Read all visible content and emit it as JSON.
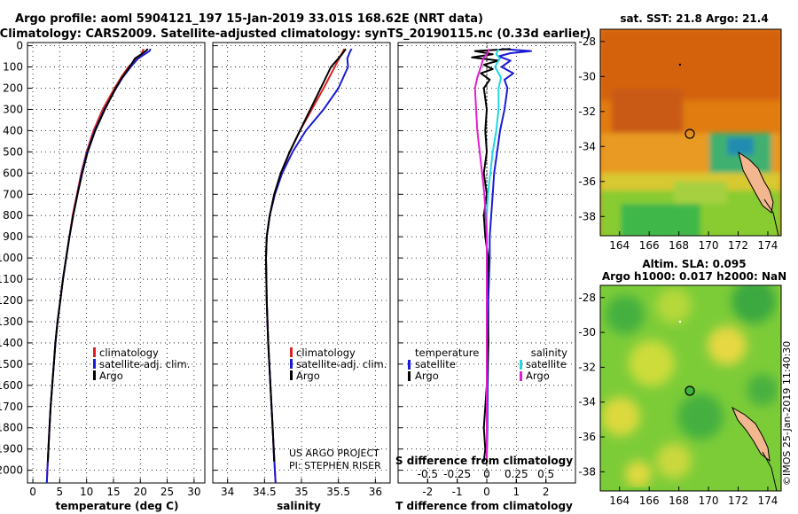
{
  "title": {
    "line1": "Argo profile: aoml 5904121_197 15-Jan-2019 33.01S 168.62E (NRT data)",
    "line2": "Climatology: CARS2009. Satellite-adjusted climatology: synTS_20190115.nc (0.33d earlier)"
  },
  "colors": {
    "climatology": "#e02020",
    "satellite": "#1a1ad6",
    "argo": "#000000",
    "s_satellite": "#20d8e0",
    "s_argo": "#e020d0"
  },
  "depth_ticks": [
    "0",
    "100",
    "200",
    "300",
    "400",
    "500",
    "600",
    "700",
    "800",
    "900",
    "1000",
    "1100",
    "1200",
    "1300",
    "1400",
    "1500",
    "1600",
    "1700",
    "1800",
    "1900",
    "2000"
  ],
  "legend_temp": {
    "climatology": "climatology",
    "satellite": "satellite-adj. clim.",
    "argo": "Argo"
  },
  "legend_diff": {
    "temp_title": "temperature",
    "sal_title": "salinity",
    "satellite": "satellite",
    "argo": "Argo"
  },
  "credit": {
    "line1": "US ARGO PROJECT",
    "line2": "PI: STEPHEN RISER"
  },
  "maps": {
    "sst_title": "sat. SST: 21.8 Argo: 21.4",
    "sla_title1": "Altim. SLA: 0.095",
    "sla_title2": "Argo h1000: 0.017 h2000: NaN",
    "lat_labels": [
      "-28",
      "-30",
      "-32",
      "-34",
      "-36",
      "-38"
    ],
    "lon_labels": [
      "164",
      "166",
      "168",
      "170",
      "172",
      "174"
    ]
  },
  "watermark": "©IMOS 25-Jan-2019 11:40:30",
  "chart_data": [
    {
      "type": "line",
      "xlabel": "temperature (deg C)",
      "ylabel": "depth",
      "xlim": [
        -1,
        32
      ],
      "ylim": [
        2060,
        -15
      ],
      "x_ticks": [
        "0",
        "5",
        "10",
        "15",
        "20",
        "25",
        "30"
      ],
      "series": [
        {
          "name": "climatology",
          "depth": [
            15,
            40,
            60,
            100,
            150,
            200,
            300,
            400,
            500,
            600,
            700,
            800,
            900,
            1000,
            1100,
            1200,
            1300,
            1400,
            1500,
            1600,
            1700,
            1800,
            1900,
            2000,
            2060
          ],
          "values": [
            20.6,
            20.2,
            19.4,
            17.8,
            16.4,
            15.2,
            13.0,
            11.3,
            10.0,
            9.0,
            8.2,
            7.4,
            6.8,
            6.2,
            5.6,
            5.1,
            4.6,
            4.2,
            3.9,
            3.6,
            3.3,
            3.1,
            2.9,
            2.7,
            2.6
          ]
        },
        {
          "name": "satellite-adj. clim.",
          "depth": [
            15,
            25,
            40,
            60,
            100,
            150,
            200,
            300,
            400,
            500,
            600,
            700,
            800,
            900,
            1000,
            1100,
            1200,
            1300,
            1400,
            1500,
            1600,
            1700,
            1800,
            1900,
            2000,
            2060
          ],
          "values": [
            21.9,
            21.7,
            20.8,
            19.6,
            18.2,
            16.7,
            15.5,
            13.3,
            11.5,
            10.1,
            9.1,
            8.3,
            7.5,
            6.8,
            6.2,
            5.6,
            5.1,
            4.6,
            4.2,
            3.9,
            3.6,
            3.3,
            3.1,
            2.9,
            2.7,
            2.6
          ]
        },
        {
          "name": "Argo",
          "depth": [
            15,
            25,
            40,
            60,
            100,
            150,
            200,
            300,
            400,
            500,
            600,
            700,
            800,
            900,
            1000,
            1100,
            1200,
            1300,
            1400,
            1500,
            1600,
            1700,
            1800,
            1900,
            1960
          ],
          "values": [
            21.4,
            21.0,
            20.2,
            19.0,
            18.0,
            16.6,
            15.4,
            13.4,
            11.6,
            10.2,
            9.2,
            8.3,
            7.5,
            6.8,
            6.2,
            5.6,
            5.1,
            4.6,
            4.2,
            3.9,
            3.6,
            3.3,
            3.1,
            2.9,
            2.8
          ]
        }
      ]
    },
    {
      "type": "line",
      "xlabel": "salinity",
      "xlim": [
        33.8,
        36.2
      ],
      "ylim": [
        2060,
        -15
      ],
      "x_ticks": [
        "34",
        "34.5",
        "35",
        "35.5",
        "36"
      ],
      "series": [
        {
          "name": "climatology",
          "depth": [
            15,
            40,
            100,
            200,
            300,
            400,
            500,
            600,
            700,
            800,
            900,
            1000,
            1200,
            1400,
            1600,
            1800,
            2000,
            2060
          ],
          "values": [
            35.58,
            35.54,
            35.45,
            35.3,
            35.14,
            34.98,
            34.84,
            34.73,
            34.64,
            34.57,
            34.53,
            34.52,
            34.53,
            34.55,
            34.58,
            34.61,
            34.64,
            34.65
          ]
        },
        {
          "name": "satellite-adj. clim.",
          "depth": [
            15,
            25,
            60,
            100,
            200,
            300,
            400,
            500,
            600,
            700,
            800,
            900,
            1000,
            1200,
            1400,
            1600,
            1800,
            2000,
            2060
          ],
          "values": [
            35.68,
            35.66,
            35.62,
            35.63,
            35.5,
            35.3,
            35.06,
            34.88,
            34.74,
            34.64,
            34.57,
            34.53,
            34.52,
            34.53,
            34.55,
            34.58,
            34.61,
            34.64,
            34.65
          ]
        },
        {
          "name": "Argo",
          "depth": [
            15,
            40,
            100,
            200,
            300,
            400,
            500,
            600,
            700,
            800,
            900,
            1000,
            1200,
            1400,
            1600,
            1800,
            1960
          ],
          "values": [
            35.6,
            35.55,
            35.4,
            35.26,
            35.12,
            34.98,
            34.84,
            34.72,
            34.63,
            34.57,
            34.53,
            34.52,
            34.53,
            34.55,
            34.58,
            34.61,
            34.63
          ]
        }
      ]
    },
    {
      "type": "line",
      "xlabel": "T difference from climatology",
      "x2label": "S difference from climatology",
      "xlim": [
        -3,
        3
      ],
      "ylim": [
        2060,
        -15
      ],
      "x_ticks": [
        "-2",
        "-1",
        "0",
        "1",
        "2"
      ],
      "x2_ticks": [
        "-0.5",
        "-0.25",
        "0",
        "0.25",
        "0.5"
      ],
      "series": [
        {
          "name": "temperature satellite",
          "depth": [
            15,
            25,
            35,
            50,
            70,
            100,
            130,
            160,
            200,
            300,
            400,
            500,
            600,
            700,
            800,
            900,
            1000,
            1200,
            1400,
            1600,
            1800,
            1960
          ],
          "values": [
            0.5,
            1.5,
            0.8,
            0.4,
            0.8,
            0.5,
            0.9,
            0.6,
            0.7,
            0.6,
            0.45,
            0.35,
            0.25,
            0.2,
            0.15,
            0.1,
            0.1,
            0.05,
            0.05,
            0.03,
            0.02,
            0.0
          ]
        },
        {
          "name": "temperature Argo",
          "depth": [
            15,
            25,
            40,
            55,
            70,
            90,
            110,
            130,
            160,
            200,
            300,
            400,
            500,
            600,
            700,
            800,
            900,
            1000,
            1200,
            1400,
            1600,
            1800,
            1900,
            1960
          ],
          "values": [
            0.8,
            -0.4,
            0.2,
            -0.5,
            0.4,
            -0.1,
            0.2,
            -0.2,
            0.1,
            -0.1,
            0.0,
            -0.05,
            0.0,
            -0.1,
            0.0,
            -0.1,
            -0.05,
            0.05,
            0.0,
            0.05,
            0.0,
            -0.1,
            -0.05,
            -0.1
          ]
        },
        {
          "name": "salinity satellite",
          "depth": [
            15,
            40,
            60,
            100,
            150,
            200,
            300,
            400,
            500,
            600,
            700,
            800,
            900,
            1000,
            1200,
            1400,
            1600,
            1800,
            1960
          ],
          "values": [
            0.1,
            0.08,
            0.11,
            0.07,
            0.12,
            0.1,
            0.1,
            0.08,
            0.05,
            0.03,
            0.01,
            0.0,
            0.0,
            0.0,
            0.0,
            0.0,
            0.0,
            0.0,
            0.0
          ]
        },
        {
          "name": "salinity Argo",
          "depth": [
            15,
            40,
            60,
            100,
            150,
            200,
            300,
            400,
            500,
            600,
            700,
            800,
            900,
            1000,
            1200,
            1400,
            1600,
            1800,
            1960
          ],
          "values": [
            0.02,
            0.0,
            -0.03,
            -0.05,
            -0.08,
            -0.1,
            -0.09,
            -0.08,
            -0.06,
            -0.04,
            -0.02,
            -0.01,
            0.0,
            0.0,
            0.0,
            0.0,
            0.0,
            0.0,
            0.0
          ]
        }
      ]
    }
  ]
}
